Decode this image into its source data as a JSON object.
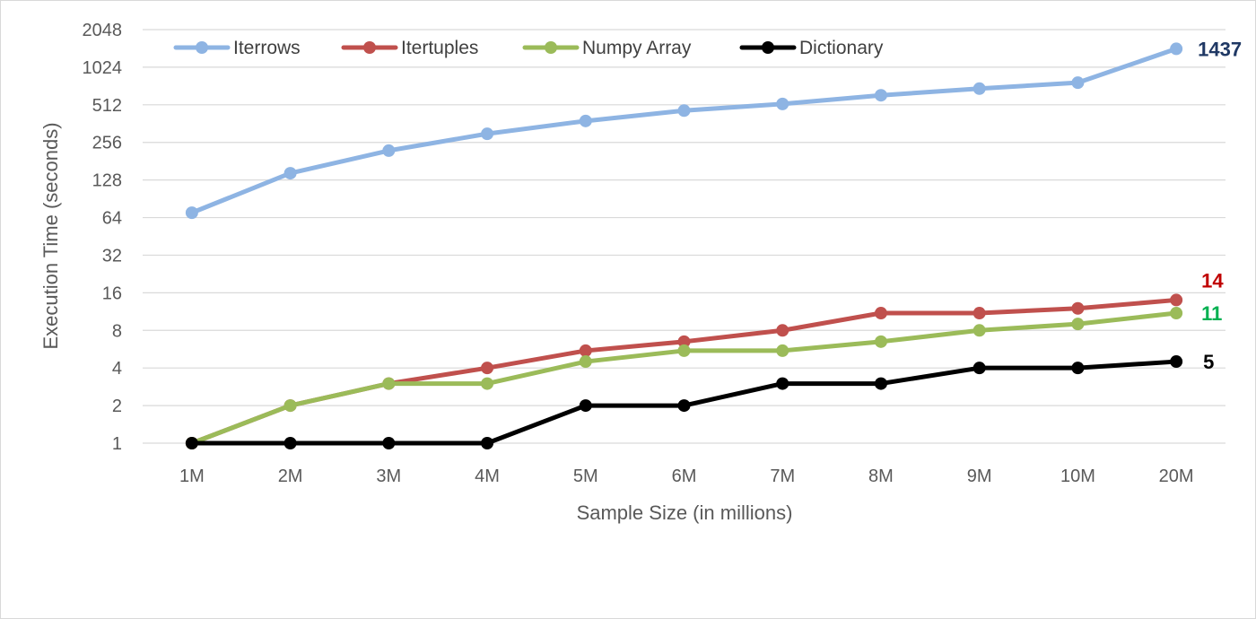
{
  "chart_data": {
    "type": "line",
    "xlabel": "Sample Size (in millions)",
    "ylabel": "Execution Time (seconds)",
    "yscale": "log2",
    "ylim": [
      1,
      2048
    ],
    "yticks": [
      1,
      2,
      4,
      8,
      16,
      32,
      64,
      128,
      256,
      512,
      1024,
      2048
    ],
    "ytick_labels": [
      "1",
      "2",
      "4",
      "8",
      "16",
      "32",
      "64",
      "128",
      "256",
      "512",
      "1024",
      "2048"
    ],
    "categories": [
      "1M",
      "2M",
      "3M",
      "4M",
      "5M",
      "6M",
      "7M",
      "8M",
      "9M",
      "10M",
      "20M"
    ],
    "grid": true,
    "legend_position": "top",
    "series": [
      {
        "name": "Iterrows",
        "color": "#8eb4e3",
        "values": [
          70,
          145,
          220,
          300,
          380,
          460,
          520,
          610,
          690,
          770,
          1437
        ],
        "end_label": "1437",
        "end_label_color": "#1f3864"
      },
      {
        "name": "Itertuples",
        "color": "#c0504d",
        "values": [
          1,
          2,
          3,
          4,
          5.5,
          6.5,
          8,
          11,
          11,
          12,
          14
        ],
        "end_label": "14",
        "end_label_color": "#c00000"
      },
      {
        "name": "Numpy Array",
        "color": "#9bbb59",
        "values": [
          1,
          2,
          3,
          3,
          4.5,
          5.5,
          5.5,
          6.5,
          8,
          9,
          11
        ],
        "end_label": "11",
        "end_label_color": "#00b050"
      },
      {
        "name": "Dictionary",
        "color": "#000000",
        "values": [
          1,
          1,
          1,
          1,
          2,
          2,
          3,
          3,
          4,
          4,
          4.5
        ],
        "end_label": "5",
        "end_label_color": "#000000"
      }
    ]
  }
}
